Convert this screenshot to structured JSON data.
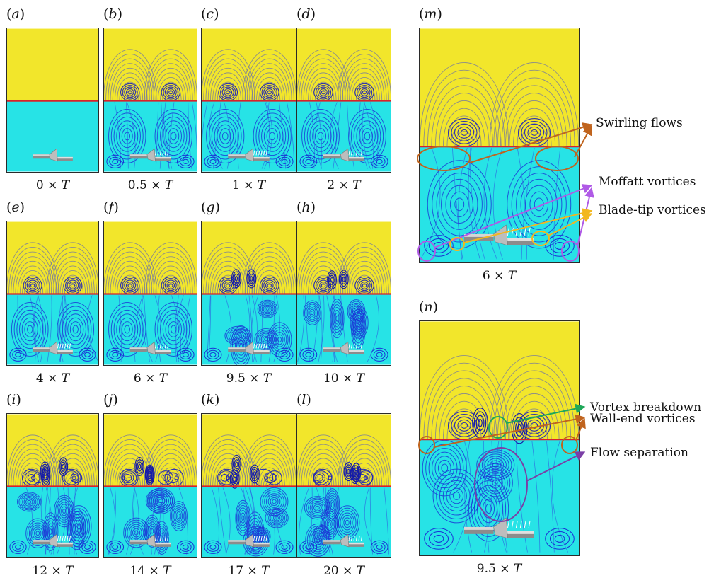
{
  "figure": {
    "time_symbol": "T",
    "panels": [
      {
        "id": "a",
        "label_letter": "a",
        "time_factor": "0 ×",
        "stage": 0
      },
      {
        "id": "b",
        "label_letter": "b",
        "time_factor": "0.5 ×",
        "stage": 1
      },
      {
        "id": "c",
        "label_letter": "c",
        "time_factor": "1 ×",
        "stage": 1
      },
      {
        "id": "d",
        "label_letter": "d",
        "time_factor": "2 ×",
        "stage": 2
      },
      {
        "id": "e",
        "label_letter": "e",
        "time_factor": "4 ×",
        "stage": 2
      },
      {
        "id": "f",
        "label_letter": "f",
        "time_factor": "6 ×",
        "stage": 3
      },
      {
        "id": "g",
        "label_letter": "g",
        "time_factor": "9.5 ×",
        "stage": 4
      },
      {
        "id": "h",
        "label_letter": "h",
        "time_factor": "10 ×",
        "stage": 4
      },
      {
        "id": "i",
        "label_letter": "i",
        "time_factor": "12 ×",
        "stage": 5
      },
      {
        "id": "j",
        "label_letter": "j",
        "time_factor": "14 ×",
        "stage": 5
      },
      {
        "id": "k",
        "label_letter": "k",
        "time_factor": "17 ×",
        "stage": 5
      },
      {
        "id": "l",
        "label_letter": "l",
        "time_factor": "20 ×",
        "stage": 5
      },
      {
        "id": "m",
        "label_letter": "m",
        "time_factor": "6 ×",
        "stage": 3
      },
      {
        "id": "n",
        "label_letter": "n",
        "time_factor": "9.5 ×",
        "stage": 4
      }
    ],
    "annotations": [
      {
        "id": "swirling",
        "text": "Swirling flows",
        "color": "#c0641e"
      },
      {
        "id": "moffatt",
        "text": "Moffatt vortices",
        "color": "#b05ae6"
      },
      {
        "id": "bladetip",
        "text": "Blade-tip vortices",
        "color": "#f2b71f"
      },
      {
        "id": "breakdown",
        "text": "Vortex breakdown",
        "color": "#1fa85a"
      },
      {
        "id": "wallend",
        "text": "Wall-end vortices",
        "color": "#c0641e"
      },
      {
        "id": "separation",
        "text": "Flow separation",
        "color": "#7b3fa6"
      }
    ],
    "colors": {
      "upper_fluid": "#f2e62b",
      "lower_fluid": "#27e3e6",
      "interface": "#d8222a",
      "streamline_upper": "#7a7e9a",
      "streamline_lower": "#1a2fd6",
      "impeller": "#a9a9a9"
    }
  }
}
